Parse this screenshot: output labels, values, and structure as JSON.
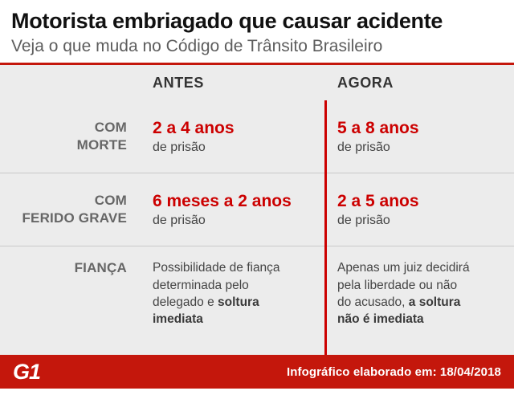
{
  "header": {
    "title": "Motorista embriagado que causar acidente",
    "subtitle": "Veja o que muda no Código de Trânsito Brasileiro"
  },
  "table": {
    "columns": {
      "before": "ANTES",
      "after": "AGORA"
    },
    "rows": [
      {
        "label": "COM\nMORTE",
        "before_value": "2 a 4 anos",
        "before_sub": "de prisão",
        "after_value": "5 a 8 anos",
        "after_sub": "de prisão"
      },
      {
        "label": "COM\nFERIDO GRAVE",
        "before_value": "6 meses a 2 anos",
        "before_sub": "de prisão",
        "after_value": "2 a 5 anos",
        "after_sub": "de prisão"
      },
      {
        "label": "FIANÇA",
        "before_text": "Possibilidade de fiança determinada pelo delegado e ",
        "before_bold": "soltura imediata",
        "after_text": "Apenas um juiz decidirá pela liberdade ou não do acusado, ",
        "after_bold": "a soltura não é imediata"
      }
    ]
  },
  "footer": {
    "logo": "G1",
    "note": "Infográfico elaborado em: 18/04/2018"
  },
  "colors": {
    "brand_red": "#c4170c",
    "value_red": "#cc0000",
    "table_bg": "#ececec",
    "divider_gray": "#c9c9c9"
  }
}
